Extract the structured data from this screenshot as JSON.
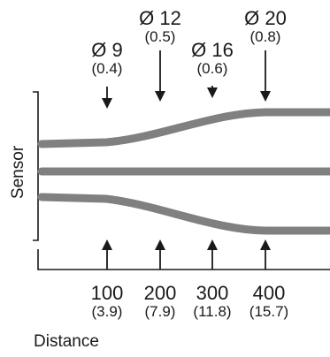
{
  "sensor_label": "Sensor",
  "distance_title": "Distance",
  "spot_sizes": [
    {
      "diameter": "Ø 9",
      "inch": "(0.4)"
    },
    {
      "diameter": "Ø 12",
      "inch": "(0.5)"
    },
    {
      "diameter": "Ø 16",
      "inch": "(0.6)"
    },
    {
      "diameter": "Ø 20",
      "inch": "(0.8)"
    }
  ],
  "distances": [
    {
      "mm": "100",
      "inch": "(3.9)"
    },
    {
      "mm": "200",
      "inch": "(7.9)"
    },
    {
      "mm": "300",
      "inch": "(11.8)"
    },
    {
      "mm": "400",
      "inch": "(15.7)"
    }
  ],
  "colors": {
    "beam": "#808080",
    "ink": "#1a1a1a",
    "background": "#ffffff"
  }
}
